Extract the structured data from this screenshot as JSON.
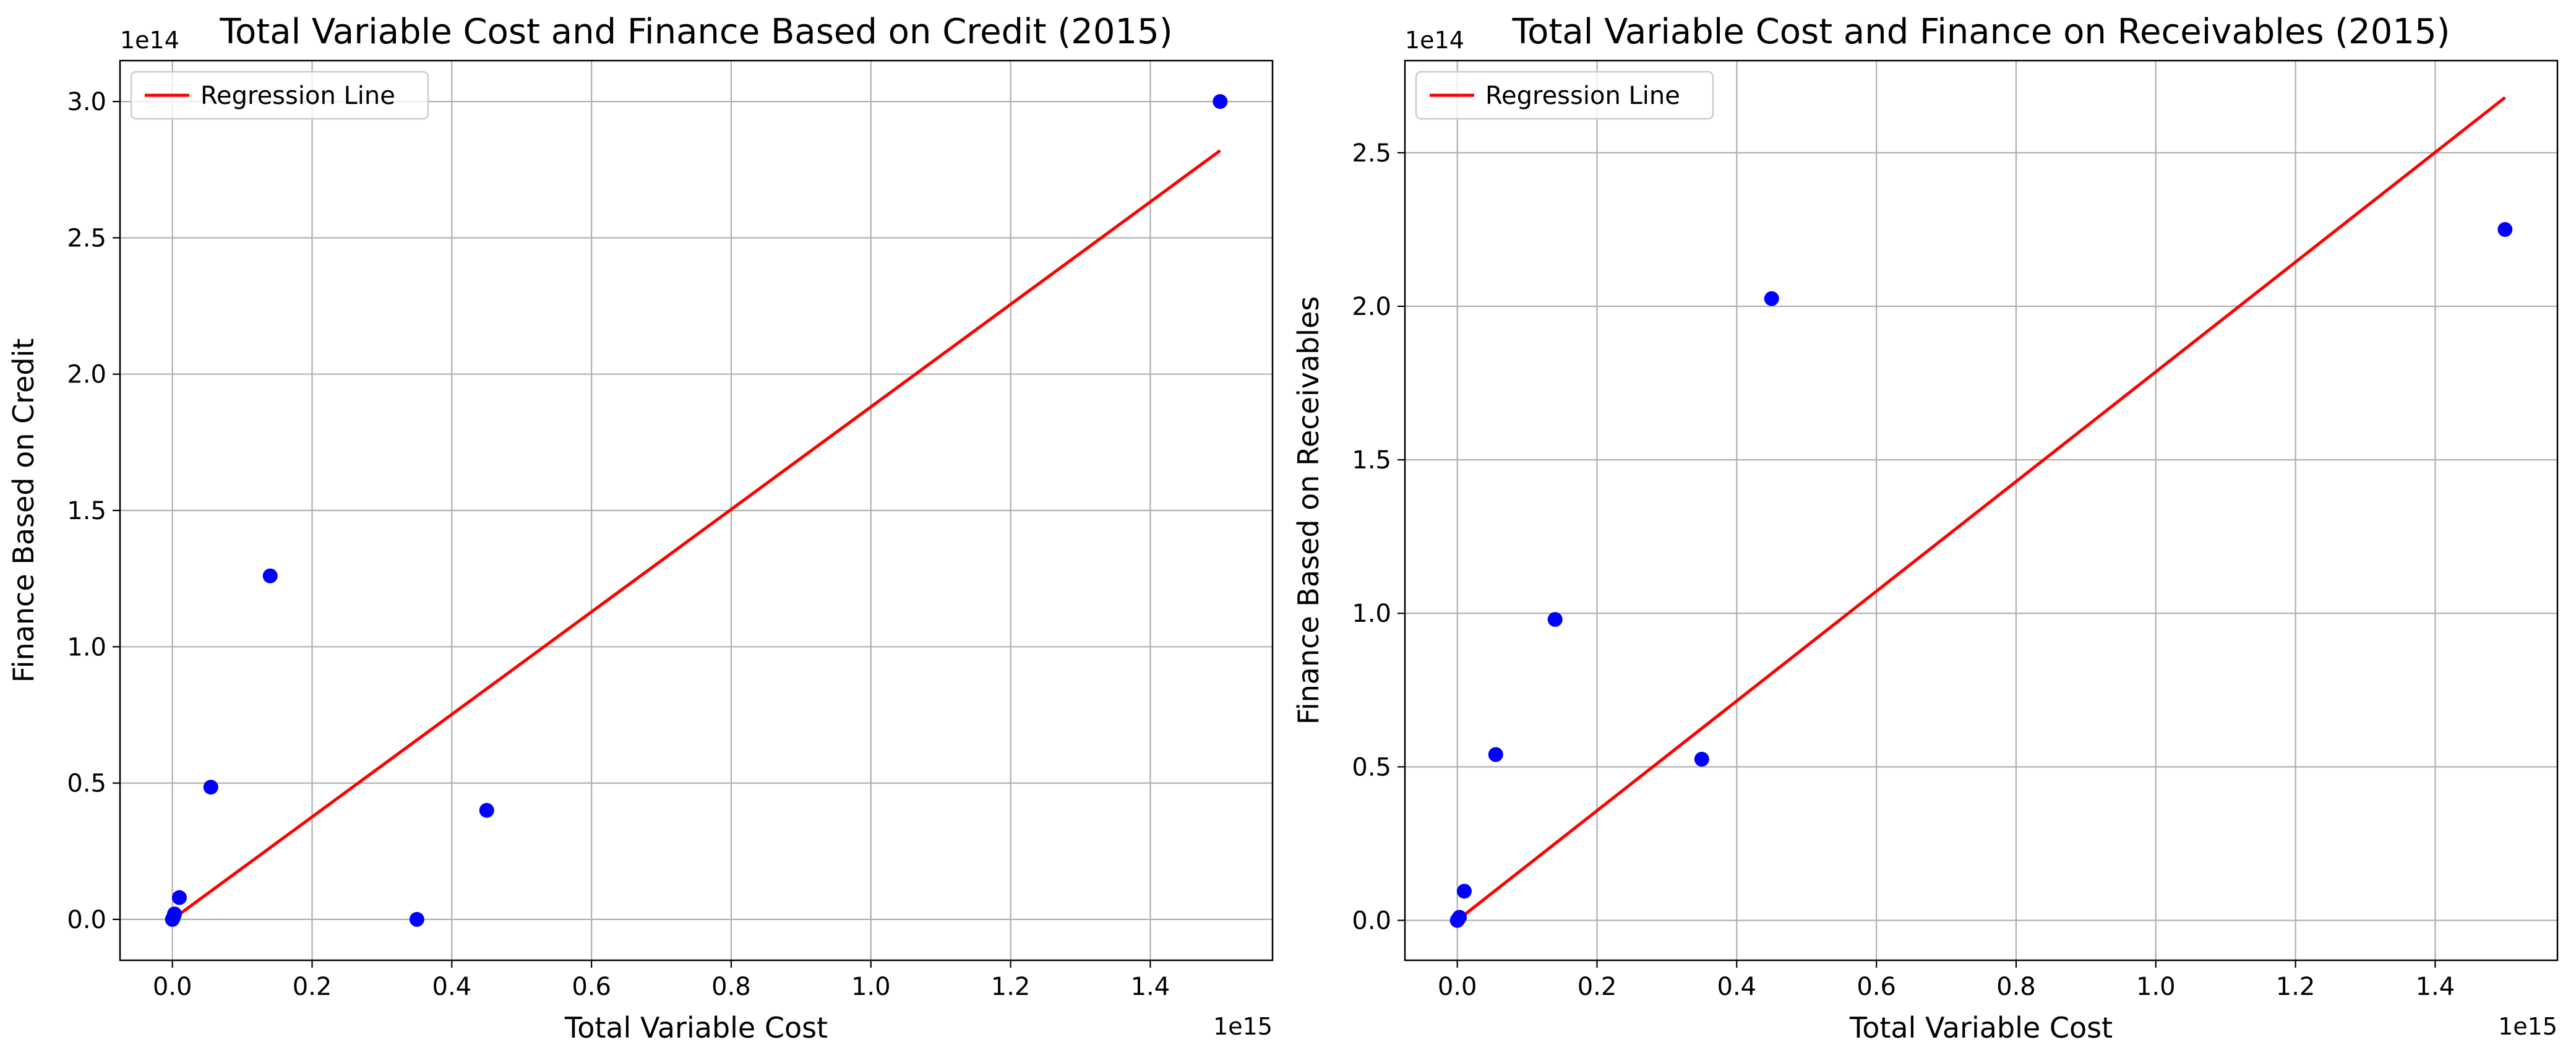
{
  "chart_data": [
    {
      "type": "scatter",
      "title": "Total Variable Cost and Finance Based on Credit (2015)",
      "xlabel": "Total Variable Cost",
      "ylabel": "Finance Based on Credit",
      "x_offset_label": "1e15",
      "y_offset_label": "1e14",
      "xlim": [
        -0.075,
        1.575
      ],
      "ylim": [
        -0.15,
        3.15
      ],
      "xticks": [
        0.0,
        0.2,
        0.4,
        0.6,
        0.8,
        1.0,
        1.2,
        1.4
      ],
      "xtick_labels": [
        "0.0",
        "0.2",
        "0.4",
        "0.6",
        "0.8",
        "1.0",
        "1.2",
        "1.4"
      ],
      "yticks": [
        0.0,
        0.5,
        1.0,
        1.5,
        2.0,
        2.5,
        3.0
      ],
      "ytick_labels": [
        "0.0",
        "0.5",
        "1.0",
        "1.5",
        "2.0",
        "2.5",
        "3.0"
      ],
      "grid": true,
      "legend": {
        "position": "top-left",
        "entries": [
          "Regression Line"
        ]
      },
      "points": {
        "color": "#0000ff",
        "x": [
          0.0,
          0.001,
          0.003,
          0.01,
          0.055,
          0.14,
          0.35,
          0.45,
          1.5
        ],
        "y": [
          0.0,
          0.005,
          0.02,
          0.08,
          0.485,
          1.26,
          0.0,
          0.4,
          3.0
        ]
      },
      "regression_line": {
        "label": "Regression Line",
        "color": "#ff0000",
        "x": [
          0.0,
          1.5
        ],
        "y": [
          0.0,
          2.82
        ]
      }
    },
    {
      "type": "scatter",
      "title": "Total Variable Cost and Finance on Receivables (2015)",
      "xlabel": "Total Variable Cost",
      "ylabel": "Finance Based on Receivables",
      "x_offset_label": "1e15",
      "y_offset_label": "1e14",
      "xlim": [
        -0.075,
        1.575
      ],
      "ylim": [
        -0.13,
        2.8
      ],
      "xticks": [
        0.0,
        0.2,
        0.4,
        0.6,
        0.8,
        1.0,
        1.2,
        1.4
      ],
      "xtick_labels": [
        "0.0",
        "0.2",
        "0.4",
        "0.6",
        "0.8",
        "1.0",
        "1.2",
        "1.4"
      ],
      "yticks": [
        0.0,
        0.5,
        1.0,
        1.5,
        2.0,
        2.5
      ],
      "ytick_labels": [
        "0.0",
        "0.5",
        "1.0",
        "1.5",
        "2.0",
        "2.5"
      ],
      "grid": true,
      "legend": {
        "position": "top-left",
        "entries": [
          "Regression Line"
        ]
      },
      "points": {
        "color": "#0000ff",
        "x": [
          0.0,
          0.001,
          0.003,
          0.01,
          0.055,
          0.14,
          0.35,
          0.45,
          1.5
        ],
        "y": [
          0.0,
          0.003,
          0.01,
          0.095,
          0.54,
          0.98,
          0.525,
          2.025,
          2.25
        ]
      },
      "regression_line": {
        "label": "Regression Line",
        "color": "#ff0000",
        "x": [
          0.0,
          1.5
        ],
        "y": [
          0.0,
          2.68
        ]
      }
    }
  ]
}
